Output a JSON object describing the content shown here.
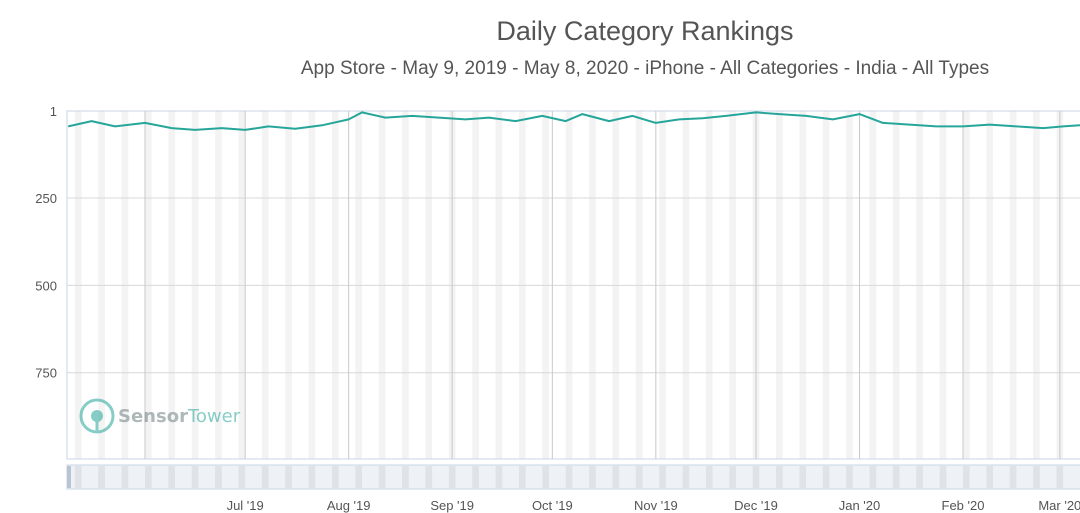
{
  "chart_data": {
    "type": "line",
    "title": "Daily Category Rankings",
    "subtitle": "App Store - May 9, 2019 - May 8, 2020 - iPhone - All Categories - India - All Types",
    "y_axis": {
      "reversed": true,
      "range": [
        1,
        1000
      ],
      "ticks": [
        "1",
        "250",
        "500",
        "750"
      ]
    },
    "x_axis": {
      "ticks": [
        "Jul '19",
        "Aug '19",
        "Sep '19",
        "Oct '19",
        "Nov '19",
        "Dec '19",
        "Jan '20",
        "Feb '20",
        "Mar '20"
      ]
    },
    "series": [
      {
        "color": "#26a69a",
        "x": [
          "2019-05-09",
          "2019-05-16",
          "2019-05-23",
          "2019-06-01",
          "2019-06-09",
          "2019-06-16",
          "2019-06-24",
          "2019-07-01",
          "2019-07-08",
          "2019-07-16",
          "2019-07-24",
          "2019-08-01",
          "2019-08-05",
          "2019-08-12",
          "2019-08-20",
          "2019-08-28",
          "2019-09-05",
          "2019-09-12",
          "2019-09-20",
          "2019-09-28",
          "2019-10-05",
          "2019-10-10",
          "2019-10-18",
          "2019-10-25",
          "2019-11-01",
          "2019-11-08",
          "2019-11-15",
          "2019-11-22",
          "2019-12-01",
          "2019-12-08",
          "2019-12-16",
          "2019-12-24",
          "2020-01-01",
          "2020-01-08",
          "2020-01-16",
          "2020-01-24",
          "2020-02-01",
          "2020-02-09",
          "2020-02-17",
          "2020-02-25",
          "2020-03-02",
          "2020-03-10"
        ],
        "values": [
          45,
          30,
          45,
          35,
          50,
          55,
          50,
          55,
          45,
          52,
          42,
          25,
          5,
          20,
          15,
          20,
          25,
          20,
          30,
          15,
          30,
          10,
          30,
          15,
          35,
          25,
          22,
          15,
          5,
          10,
          15,
          25,
          10,
          35,
          40,
          45,
          45,
          40,
          45,
          50,
          45,
          40
        ]
      }
    ],
    "watermark": {
      "part1": "Sensor",
      "part2": "Tower"
    },
    "grid": true
  }
}
